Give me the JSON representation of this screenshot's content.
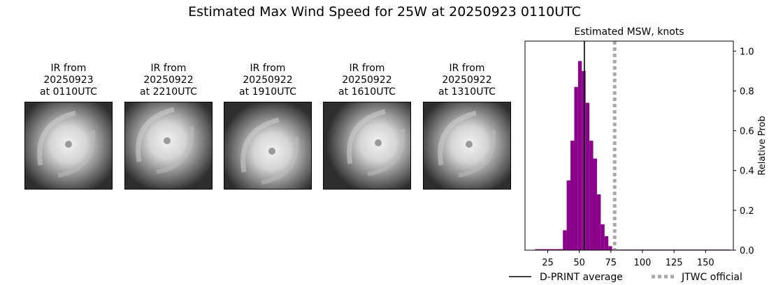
{
  "suptitle": "Estimated Max Wind Speed for 25W at 20250923 0110UTC",
  "ir_panels": [
    {
      "title": "IR from\n20250923\nat 0110UTC"
    },
    {
      "title": "IR from\n20250922\nat 2210UTC"
    },
    {
      "title": "IR from\n20250922\nat 1910UTC"
    },
    {
      "title": "IR from\n20250922\nat 1610UTC"
    },
    {
      "title": "IR from\n20250922\nat 1310UTC"
    }
  ],
  "chart_data": {
    "type": "bar",
    "title": "Estimated MSW, knots",
    "xlabel": "",
    "ylabel": "Relative Prob",
    "xlim": [
      7,
      172
    ],
    "ylim": [
      0,
      1.05
    ],
    "xticks": [
      25,
      50,
      75,
      100,
      125,
      150
    ],
    "yticks": [
      0.0,
      0.2,
      0.4,
      0.6,
      0.8,
      1.0
    ],
    "ytick_labels": [
      "0.0",
      "0.2",
      "0.4",
      "0.6",
      "0.8",
      "1.0"
    ],
    "bar_color": "#8b008b",
    "bins": [
      {
        "x0": 15,
        "x1": 37,
        "y": 0.005
      },
      {
        "x0": 37,
        "x1": 40,
        "y": 0.1
      },
      {
        "x0": 40,
        "x1": 43,
        "y": 0.35
      },
      {
        "x0": 43,
        "x1": 46,
        "y": 0.55
      },
      {
        "x0": 46,
        "x1": 49,
        "y": 0.82
      },
      {
        "x0": 49,
        "x1": 52,
        "y": 0.95
      },
      {
        "x0": 52,
        "x1": 55,
        "y": 0.9
      },
      {
        "x0": 55,
        "x1": 58,
        "y": 0.74
      },
      {
        "x0": 58,
        "x1": 61,
        "y": 0.55
      },
      {
        "x0": 61,
        "x1": 64,
        "y": 0.46
      },
      {
        "x0": 64,
        "x1": 67,
        "y": 0.28
      },
      {
        "x0": 67,
        "x1": 70,
        "y": 0.13
      },
      {
        "x0": 70,
        "x1": 73,
        "y": 0.07
      },
      {
        "x0": 73,
        "x1": 76,
        "y": 0.02
      },
      {
        "x0": 76,
        "x1": 170,
        "y": 0.003
      }
    ],
    "vlines": [
      {
        "name": "D-PRINT average",
        "x": 54,
        "color": "#000000",
        "style": "solid"
      },
      {
        "name": "JTWC official",
        "x": 78,
        "color": "#a9a9a9",
        "style": "dotted"
      }
    ],
    "legend": {
      "placement": "bottom",
      "entries": [
        "D-PRINT average",
        "JTWC official"
      ]
    }
  }
}
